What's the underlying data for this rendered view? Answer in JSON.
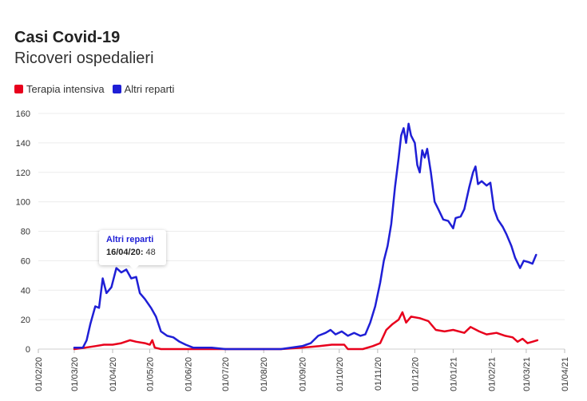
{
  "chart_data": {
    "type": "line",
    "title": "Casi Covid-19",
    "subtitle": "Ricoveri ospedalieri",
    "xlabel": "",
    "ylabel": "",
    "ylim": [
      0,
      160
    ],
    "yticks": [
      "0",
      "20",
      "40",
      "60",
      "80",
      "100",
      "120",
      "140",
      "160"
    ],
    "xticks": [
      "01/02/20",
      "01/03/20",
      "01/04/20",
      "01/05/20",
      "01/06/20",
      "01/07/20",
      "01/08/20",
      "01/09/20",
      "01/10/20",
      "01/11/20",
      "01/12/20",
      "01/01/21",
      "01/02/21",
      "01/03/21",
      "01/04/21"
    ],
    "grid": true,
    "legend_position": "top-left",
    "series": [
      {
        "name": "Terapia intensiva",
        "color": "#e8001c",
        "points": [
          [
            "2020-03-01",
            0
          ],
          [
            "2020-03-10",
            1
          ],
          [
            "2020-03-18",
            2
          ],
          [
            "2020-03-25",
            3
          ],
          [
            "2020-04-01",
            3
          ],
          [
            "2020-04-08",
            4
          ],
          [
            "2020-04-15",
            6
          ],
          [
            "2020-04-20",
            5
          ],
          [
            "2020-04-27",
            4
          ],
          [
            "2020-05-01",
            3
          ],
          [
            "2020-05-03",
            6
          ],
          [
            "2020-05-05",
            1
          ],
          [
            "2020-05-10",
            0
          ],
          [
            "2020-08-01",
            0
          ],
          [
            "2020-08-15",
            0
          ],
          [
            "2020-09-01",
            1
          ],
          [
            "2020-09-15",
            2
          ],
          [
            "2020-09-25",
            3
          ],
          [
            "2020-10-05",
            3
          ],
          [
            "2020-10-08",
            0
          ],
          [
            "2020-10-20",
            0
          ],
          [
            "2020-10-28",
            2
          ],
          [
            "2020-11-03",
            4
          ],
          [
            "2020-11-08",
            13
          ],
          [
            "2020-11-13",
            17
          ],
          [
            "2020-11-18",
            20
          ],
          [
            "2020-11-21",
            25
          ],
          [
            "2020-11-24",
            18
          ],
          [
            "2020-11-28",
            22
          ],
          [
            "2020-12-05",
            21
          ],
          [
            "2020-12-12",
            19
          ],
          [
            "2020-12-18",
            13
          ],
          [
            "2020-12-25",
            12
          ],
          [
            "2021-01-01",
            13
          ],
          [
            "2021-01-10",
            11
          ],
          [
            "2021-01-15",
            15
          ],
          [
            "2021-01-22",
            12
          ],
          [
            "2021-01-28",
            10
          ],
          [
            "2021-02-05",
            11
          ],
          [
            "2021-02-12",
            9
          ],
          [
            "2021-02-18",
            8
          ],
          [
            "2021-02-22",
            5
          ],
          [
            "2021-02-26",
            7
          ],
          [
            "2021-03-02",
            4
          ],
          [
            "2021-03-06",
            5
          ],
          [
            "2021-03-10",
            6
          ]
        ]
      },
      {
        "name": "Altri reparti",
        "color": "#1f1fd6",
        "points": [
          [
            "2020-03-01",
            1
          ],
          [
            "2020-03-08",
            1
          ],
          [
            "2020-03-11",
            6
          ],
          [
            "2020-03-14",
            17
          ],
          [
            "2020-03-18",
            29
          ],
          [
            "2020-03-21",
            28
          ],
          [
            "2020-03-24",
            48
          ],
          [
            "2020-03-27",
            38
          ],
          [
            "2020-03-31",
            42
          ],
          [
            "2020-04-04",
            55
          ],
          [
            "2020-04-08",
            52
          ],
          [
            "2020-04-12",
            54
          ],
          [
            "2020-04-16",
            48
          ],
          [
            "2020-04-20",
            49
          ],
          [
            "2020-04-23",
            38
          ],
          [
            "2020-04-27",
            34
          ],
          [
            "2020-05-02",
            28
          ],
          [
            "2020-05-06",
            22
          ],
          [
            "2020-05-10",
            12
          ],
          [
            "2020-05-15",
            9
          ],
          [
            "2020-05-20",
            8
          ],
          [
            "2020-05-25",
            5
          ],
          [
            "2020-05-30",
            3
          ],
          [
            "2020-06-05",
            1
          ],
          [
            "2020-06-20",
            1
          ],
          [
            "2020-07-01",
            0
          ],
          [
            "2020-08-15",
            0
          ],
          [
            "2020-09-01",
            2
          ],
          [
            "2020-09-08",
            4
          ],
          [
            "2020-09-14",
            9
          ],
          [
            "2020-09-20",
            11
          ],
          [
            "2020-09-24",
            13
          ],
          [
            "2020-09-28",
            10
          ],
          [
            "2020-10-03",
            12
          ],
          [
            "2020-10-08",
            9
          ],
          [
            "2020-10-13",
            11
          ],
          [
            "2020-10-18",
            9
          ],
          [
            "2020-10-22",
            10
          ],
          [
            "2020-10-26",
            18
          ],
          [
            "2020-10-30",
            29
          ],
          [
            "2020-11-03",
            45
          ],
          [
            "2020-11-06",
            60
          ],
          [
            "2020-11-09",
            70
          ],
          [
            "2020-11-12",
            85
          ],
          [
            "2020-11-15",
            110
          ],
          [
            "2020-11-18",
            130
          ],
          [
            "2020-11-20",
            145
          ],
          [
            "2020-11-22",
            150
          ],
          [
            "2020-11-24",
            140
          ],
          [
            "2020-11-26",
            153
          ],
          [
            "2020-11-28",
            145
          ],
          [
            "2020-12-01",
            140
          ],
          [
            "2020-12-03",
            125
          ],
          [
            "2020-12-05",
            120
          ],
          [
            "2020-12-07",
            135
          ],
          [
            "2020-12-09",
            130
          ],
          [
            "2020-12-11",
            136
          ],
          [
            "2020-12-14",
            120
          ],
          [
            "2020-12-17",
            100
          ],
          [
            "2020-12-20",
            95
          ],
          [
            "2020-12-24",
            88
          ],
          [
            "2020-12-28",
            87
          ],
          [
            "2021-01-01",
            82
          ],
          [
            "2021-01-03",
            89
          ],
          [
            "2021-01-07",
            90
          ],
          [
            "2021-01-10",
            95
          ],
          [
            "2021-01-14",
            110
          ],
          [
            "2021-01-17",
            120
          ],
          [
            "2021-01-19",
            124
          ],
          [
            "2021-01-21",
            112
          ],
          [
            "2021-01-24",
            114
          ],
          [
            "2021-01-28",
            111
          ],
          [
            "2021-01-31",
            113
          ],
          [
            "2021-02-03",
            95
          ],
          [
            "2021-02-06",
            88
          ],
          [
            "2021-02-10",
            83
          ],
          [
            "2021-02-13",
            78
          ],
          [
            "2021-02-17",
            70
          ],
          [
            "2021-02-20",
            62
          ],
          [
            "2021-02-24",
            55
          ],
          [
            "2021-02-27",
            60
          ],
          [
            "2021-03-03",
            59
          ],
          [
            "2021-03-06",
            58
          ],
          [
            "2021-03-09",
            64
          ]
        ]
      }
    ],
    "tooltip": {
      "series": "Altri reparti",
      "date_label": "16/04/20:",
      "value": "48"
    }
  }
}
